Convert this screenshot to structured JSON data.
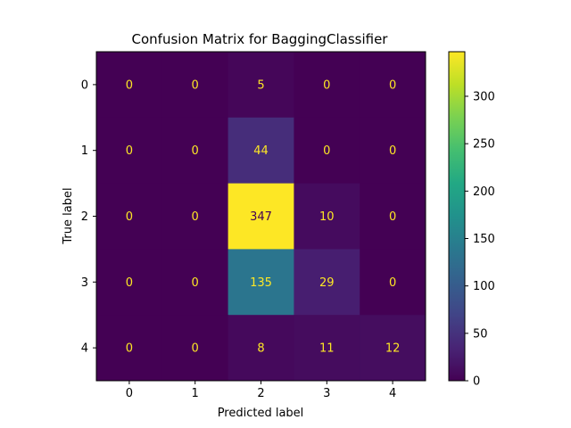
{
  "chart_data": {
    "type": "heatmap",
    "title": "Confusion Matrix for BaggingClassifier",
    "xlabel": "Predicted label",
    "ylabel": "True label",
    "x_categories": [
      "0",
      "1",
      "2",
      "3",
      "4"
    ],
    "y_categories": [
      "0",
      "1",
      "2",
      "3",
      "4"
    ],
    "values": [
      [
        0,
        0,
        5,
        0,
        0
      ],
      [
        0,
        0,
        44,
        0,
        0
      ],
      [
        0,
        0,
        347,
        10,
        0
      ],
      [
        0,
        0,
        135,
        29,
        0
      ],
      [
        0,
        0,
        8,
        11,
        12
      ]
    ],
    "colormap": "viridis",
    "colorbar": {
      "range": [
        0,
        347
      ],
      "ticks": [
        0,
        50,
        100,
        150,
        200,
        250,
        300
      ]
    },
    "text_colors": {
      "on_dark": "#fde725",
      "on_light": "#440154"
    },
    "grid": false
  }
}
